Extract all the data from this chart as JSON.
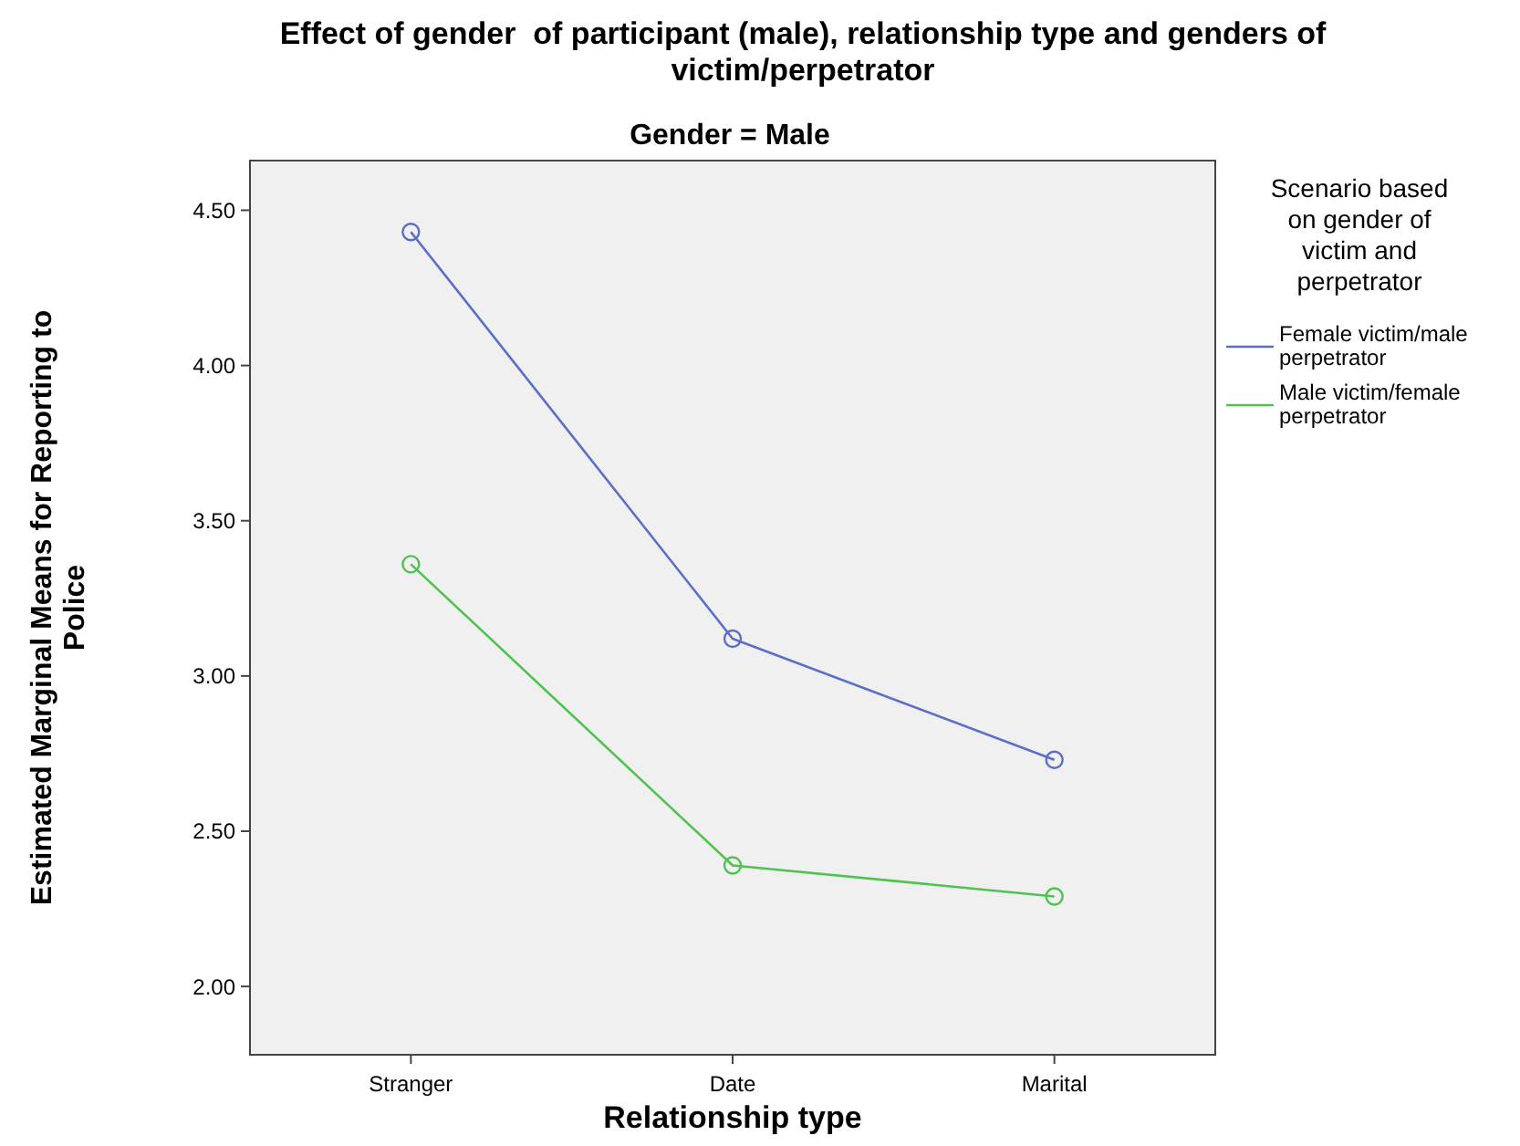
{
  "chart_data": {
    "type": "line",
    "title": "Effect of gender  of participant (male), relationship type and genders of victim/perpetrator",
    "subtitle": "Gender = Male",
    "xlabel": "Relationship type",
    "ylabel": "Estimated Marginal Means for Reporting to Police",
    "legend_title": "Scenario based on gender of victim and perpetrator",
    "categories": [
      "Stranger",
      "Date",
      "Marital"
    ],
    "series": [
      {
        "name": "Female victim/male perpetrator",
        "color": "#5b6fc6",
        "values": [
          4.43,
          3.12,
          2.73
        ]
      },
      {
        "name": "Male victim/female perpetrator",
        "color": "#4fc24f",
        "values": [
          3.36,
          2.39,
          2.29
        ]
      }
    ],
    "ylim": [
      1.78,
      4.66
    ],
    "yticks": [
      {
        "value": 2,
        "label": "2.00"
      },
      {
        "value": 2.5,
        "label": "2.50"
      },
      {
        "value": 3,
        "label": "3.00"
      },
      {
        "value": 3.5,
        "label": "3.50"
      },
      {
        "value": 4,
        "label": "4.00"
      },
      {
        "value": 4.5,
        "label": "4.50"
      }
    ],
    "grid": false,
    "legend": "right",
    "marker": "circle",
    "line_style": "solid"
  }
}
